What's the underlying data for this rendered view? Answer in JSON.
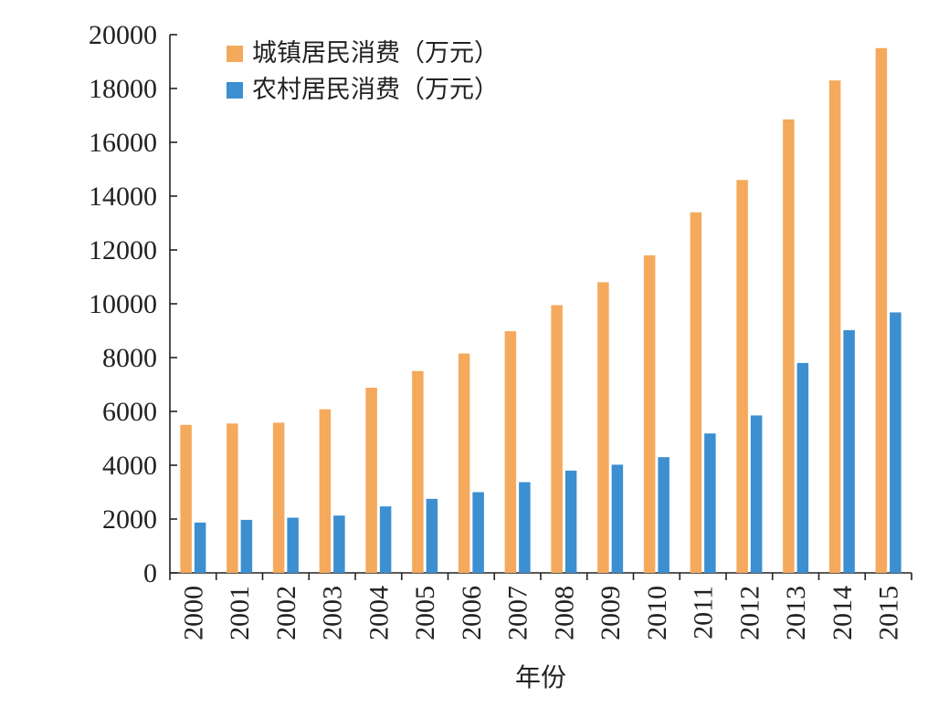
{
  "chart_data": {
    "type": "bar",
    "title": "",
    "xlabel": "年份",
    "ylabel": "",
    "ylim": [
      0,
      20000
    ],
    "yticks": [
      0,
      2000,
      4000,
      6000,
      8000,
      10000,
      12000,
      14000,
      16000,
      18000,
      20000
    ],
    "categories": [
      "2000",
      "2001",
      "2002",
      "2003",
      "2004",
      "2005",
      "2006",
      "2007",
      "2008",
      "2009",
      "2010",
      "2011",
      "2012",
      "2013",
      "2014",
      "2015"
    ],
    "series": [
      {
        "name": "城镇居民消费（万元）",
        "color": "#F4A95C",
        "values": [
          5500,
          5550,
          5580,
          6080,
          6880,
          7500,
          8150,
          8980,
          9950,
          10800,
          11800,
          13400,
          14600,
          16850,
          18300,
          19500
        ]
      },
      {
        "name": "农村居民消费（万元）",
        "color": "#3C8FD0",
        "values": [
          1870,
          1970,
          2050,
          2130,
          2470,
          2750,
          3000,
          3370,
          3800,
          4020,
          4300,
          5180,
          5850,
          7800,
          9020,
          9680
        ]
      }
    ],
    "grid": false,
    "legend_position": "top-left"
  }
}
